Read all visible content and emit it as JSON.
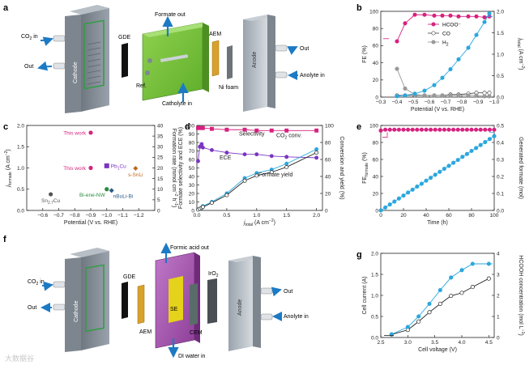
{
  "panels": {
    "a": {
      "label": "a",
      "labels": {
        "formate_out": "Formate out",
        "co2_in": "CO",
        "co2_sub": "2",
        "co2_tail": " in",
        "out": "Out",
        "gde": "GDE",
        "cathode": "Cathode",
        "ref": "Ref.",
        "aem": "AEM",
        "ni_foam": "Ni foam",
        "catholyte_in": "Catholyte in",
        "anode": "Anode",
        "out2": "Out",
        "anolyte_in": "Anolyte in"
      }
    },
    "f": {
      "label": "f",
      "labels": {
        "formic_acid_out": "Formic acid out",
        "co2_in": "CO",
        "co2_sub": "2",
        "co2_tail": " in",
        "out": "Out",
        "gde": "GDE",
        "cathode": "Cathode",
        "aem": "AEM",
        "se": "SE",
        "cem": "CEM",
        "iro2": "IrO",
        "iro2_sub": "2",
        "anode": "Anode",
        "out2": "Out",
        "anolyte_in": "Anolyte in",
        "di_water_in": "DI water in"
      }
    }
  },
  "watermark": "大数据谷",
  "colors": {
    "pink": "#d6217f",
    "purple": "#7b35c2",
    "cyan": "#2aa7de",
    "black": "#222222",
    "grey": "#888888",
    "green": "#2b8a3e",
    "orange": "#b86a1c"
  },
  "chart_data": [
    {
      "id": "b",
      "label": "b",
      "type": "line",
      "xlabel": "Potential (V vs. RHE)",
      "ylabel_left": "FE (%)",
      "ylabel_right_main": "j",
      "ylabel_right_sub": "total",
      "ylabel_right_unit": " (A cm",
      "ylabel_right_sup": "−2",
      "ylabel_right_close": ")",
      "xlim": [
        -0.3,
        -1.0
      ],
      "xticks": [
        -0.3,
        -0.4,
        -0.5,
        -0.6,
        -0.7,
        -0.8,
        -0.9,
        -1.0
      ],
      "ylim_left": [
        0,
        100
      ],
      "yticks_left": [
        0,
        20,
        40,
        60,
        80,
        100
      ],
      "ylim_right": [
        0,
        2.0
      ],
      "yticks_right": [
        0.0,
        0.5,
        1.0,
        1.5,
        2.0
      ],
      "series": [
        {
          "name": "HCOO⁻",
          "axis": "left",
          "color": "#d6217f",
          "fill": "#d6217f",
          "x": [
            -0.4,
            -0.45,
            -0.51,
            -0.57,
            -0.63,
            -0.68,
            -0.73,
            -0.78,
            -0.84,
            -0.89,
            -0.94,
            -0.97
          ],
          "y": [
            65,
            86,
            96,
            96,
            95,
            95,
            95,
            94,
            94,
            94,
            93,
            94
          ]
        },
        {
          "name": "CO",
          "axis": "left",
          "color": "#555555",
          "fill": "#ffffff",
          "x": [
            -0.4,
            -0.45,
            -0.51,
            -0.57,
            -0.63,
            -0.68,
            -0.73,
            -0.78,
            -0.84,
            -0.89,
            -0.94,
            -0.97
          ],
          "y": [
            2,
            2,
            2,
            2,
            2,
            2,
            3,
            3,
            4,
            5,
            5,
            5
          ]
        },
        {
          "name": "H",
          "name_sub": "2",
          "axis": "left",
          "color": "#999999",
          "fill": "#999999",
          "x": [
            -0.4,
            -0.45,
            -0.51,
            -0.57,
            -0.63,
            -0.68,
            -0.73,
            -0.78,
            -0.84,
            -0.89,
            -0.94,
            -0.97
          ],
          "y": [
            33,
            10,
            3,
            2,
            2,
            2,
            2,
            2,
            2,
            2,
            1,
            1
          ]
        },
        {
          "name": "j_total",
          "axis": "right",
          "color": "#2aa7de",
          "fill": "#2aa7de",
          "x": [
            -0.4,
            -0.45,
            -0.51,
            -0.57,
            -0.63,
            -0.68,
            -0.73,
            -0.78,
            -0.84,
            -0.89,
            -0.94,
            -0.97
          ],
          "y": [
            0.02,
            0.04,
            0.08,
            0.15,
            0.28,
            0.45,
            0.65,
            0.88,
            1.15,
            1.45,
            1.75,
            1.95
          ]
        }
      ]
    },
    {
      "id": "c",
      "label": "c",
      "type": "scatter",
      "xlabel": "Potential (V vs. RHE)",
      "ylabel_left_main": "j",
      "ylabel_left_sub": "formate",
      "ylabel_left_unit": " (A cm",
      "ylabel_left_sup": "−2",
      "ylabel_left_close": ")",
      "ylabel_right": "Formation rate (mmol cm",
      "ylabel_right_sup": "−2",
      "ylabel_right_tail": " h",
      "ylabel_right_sup2": "−1",
      "ylabel_right_close": ")",
      "xlim": [
        -0.5,
        -1.3
      ],
      "xticks": [
        -0.6,
        -0.7,
        -0.8,
        -0.9,
        -1.0,
        -1.1,
        -1.2
      ],
      "ylim_left": [
        0,
        2.0
      ],
      "yticks_left": [
        0.0,
        0.5,
        1.0,
        1.5,
        2.0
      ],
      "ylim_right": [
        0,
        40
      ],
      "yticks_right": [
        0,
        5,
        10,
        15,
        20,
        25,
        30,
        35,
        40
      ],
      "points": [
        {
          "name": "This work",
          "x": -0.9,
          "y": 1.83,
          "color": "#d6217f",
          "label_pos": "left"
        },
        {
          "name": "This work",
          "x": -0.9,
          "y": 1.0,
          "color": "#d6217f",
          "label_pos": "left"
        },
        {
          "name": "Pb",
          "name_sub": "1",
          "name_tail": "Cu",
          "x": -1.0,
          "y": 1.05,
          "color": "#7b35c2",
          "shape": "square",
          "label_pos": "right"
        },
        {
          "name": "s-SnLi",
          "x": -1.18,
          "y": 0.99,
          "color": "#b86a1c",
          "shape": "diamond",
          "label_pos": "below"
        },
        {
          "name": "Bi-ene-NW",
          "x": -1.0,
          "y": 0.5,
          "color": "#2b8a3e",
          "label_pos": "belowleft"
        },
        {
          "name": "nBuLi-Bi",
          "x": -1.03,
          "y": 0.47,
          "color": "#2b5a8a",
          "shape": "diamond",
          "label_pos": "belowright"
        },
        {
          "name": "Sn",
          "name_sub": "2.7",
          "name_tail": "Cu",
          "x": -0.65,
          "y": 0.38,
          "color": "#555555",
          "label_pos": "below"
        }
      ]
    },
    {
      "id": "d",
      "label": "d",
      "type": "line",
      "xlabel_main": "j",
      "xlabel_sub": "total",
      "xlabel_unit": " (A cm",
      "xlabel_sup": "−2",
      "xlabel_close": ")",
      "ylabel_left": "Formate selectivity and ECE (%)",
      "ylabel_right": "Conversion and yield (%)",
      "xlim": [
        0,
        2.1
      ],
      "xticks": [
        0.0,
        0.5,
        1.0,
        1.5,
        2.0
      ],
      "ylim_left": [
        0,
        100
      ],
      "yticks_left": [
        0,
        10,
        20,
        30,
        40,
        50,
        60,
        70,
        80,
        90,
        100
      ],
      "ylim_right": [
        0,
        100
      ],
      "yticks_right": [
        0,
        20,
        40,
        60,
        80,
        100
      ],
      "annotations": [
        "Selectivity",
        "ECE",
        "CO",
        "2",
        " conv.",
        "Formate yield"
      ],
      "series": [
        {
          "name": "Selectivity",
          "axis": "left",
          "color": "#d6217f",
          "fill": "#d6217f",
          "x": [
            0.02,
            0.05,
            0.08,
            0.1,
            0.25,
            0.5,
            0.8,
            1.0,
            1.25,
            1.5,
            2.0
          ],
          "y": [
            97,
            97,
            97,
            97,
            96,
            95,
            95,
            94,
            94,
            94,
            94
          ]
        },
        {
          "name": "ECE",
          "axis": "left",
          "color": "#7b35c2",
          "fill": "#7b35c2",
          "x": [
            0.02,
            0.05,
            0.08,
            0.1,
            0.25,
            0.5,
            0.8,
            1.0,
            1.25,
            1.5,
            2.0
          ],
          "y": [
            58,
            75,
            78,
            74,
            71,
            68,
            66,
            66,
            64,
            63,
            62
          ]
        },
        {
          "name": "CO2 conv.",
          "axis": "right",
          "color": "#2aa7de",
          "fill": "#2aa7de",
          "x": [
            0.02,
            0.05,
            0.08,
            0.1,
            0.25,
            0.5,
            0.8,
            1.0,
            1.25,
            1.5,
            2.0
          ],
          "y": [
            1,
            2,
            3,
            5,
            10,
            20,
            38,
            44,
            48,
            55,
            72
          ]
        },
        {
          "name": "Formate yield",
          "axis": "right",
          "color": "#222222",
          "fill": "#ffffff",
          "x": [
            0.02,
            0.05,
            0.08,
            0.1,
            0.25,
            0.5,
            0.8,
            1.0,
            1.25,
            1.5,
            2.0
          ],
          "y": [
            1,
            2,
            3,
            4,
            9,
            18,
            35,
            41,
            45,
            51,
            68
          ]
        }
      ]
    },
    {
      "id": "e",
      "label": "e",
      "type": "line",
      "xlabel": "Time (h)",
      "ylabel_left_main": "FE",
      "ylabel_left_sub": "formate",
      "ylabel_left_tail": " (%)",
      "ylabel_right": "Generated formate (mol)",
      "xlim": [
        0,
        100
      ],
      "xticks": [
        0,
        20,
        40,
        60,
        80,
        100
      ],
      "ylim_left": [
        0,
        100
      ],
      "yticks_left": [
        0,
        20,
        40,
        60,
        80,
        100
      ],
      "ylim_right": [
        0,
        0.5
      ],
      "yticks_right": [
        0.0,
        0.1,
        0.2,
        0.3,
        0.4,
        0.5
      ],
      "series": [
        {
          "name": "FE_formate",
          "axis": "left",
          "color": "#d6217f",
          "fill": "#d6217f",
          "x": [
            0,
            4,
            8,
            12,
            16,
            20,
            24,
            28,
            32,
            36,
            40,
            44,
            48,
            52,
            56,
            60,
            64,
            68,
            72,
            76,
            80,
            84,
            88,
            92,
            96,
            100
          ],
          "y": [
            94,
            95,
            95,
            95,
            95,
            95,
            95,
            95,
            95,
            95,
            95,
            95,
            95,
            95,
            95,
            95,
            95,
            95,
            95,
            95,
            95,
            95,
            95,
            95,
            95,
            95
          ]
        },
        {
          "name": "Generated formate",
          "axis": "right",
          "color": "#2aa7de",
          "fill": "#2aa7de",
          "x": [
            0,
            4,
            8,
            12,
            16,
            20,
            24,
            28,
            32,
            36,
            40,
            44,
            48,
            52,
            56,
            60,
            64,
            68,
            72,
            76,
            80,
            84,
            88,
            92,
            96,
            100
          ],
          "y": [
            0.0,
            0.017,
            0.035,
            0.052,
            0.07,
            0.087,
            0.105,
            0.122,
            0.14,
            0.157,
            0.175,
            0.192,
            0.21,
            0.227,
            0.245,
            0.262,
            0.28,
            0.297,
            0.315,
            0.332,
            0.35,
            0.367,
            0.385,
            0.402,
            0.42,
            0.437
          ]
        }
      ]
    },
    {
      "id": "g",
      "label": "g",
      "type": "line",
      "xlabel": "Cell voltage (V)",
      "ylabel_left": "Cell current (A)",
      "ylabel_right": "HCOOH concentration (mol L",
      "ylabel_right_sup": "−1",
      "ylabel_right_close": ")",
      "xlim": [
        2.5,
        4.6
      ],
      "xticks": [
        2.5,
        3.0,
        3.5,
        4.0,
        4.5
      ],
      "ylim_left": [
        0,
        2.0
      ],
      "yticks_left": [
        0.0,
        0.5,
        1.0,
        1.5,
        2.0
      ],
      "ylim_right": [
        0,
        4
      ],
      "yticks_right": [
        0,
        1,
        2,
        3,
        4
      ],
      "series": [
        {
          "name": "Cell current",
          "axis": "left",
          "color": "#222222",
          "fill": "#ffffff",
          "x": [
            2.7,
            3.0,
            3.2,
            3.4,
            3.6,
            3.8,
            4.0,
            4.2,
            4.5
          ],
          "y": [
            0.07,
            0.18,
            0.38,
            0.6,
            0.8,
            0.99,
            1.06,
            1.2,
            1.4
          ]
        },
        {
          "name": "HCOOH concentration",
          "axis": "right",
          "color": "#2aa7de",
          "fill": "#2aa7de",
          "x": [
            2.7,
            3.0,
            3.2,
            3.4,
            3.6,
            3.8,
            4.0,
            4.2,
            4.5
          ],
          "y": [
            0.15,
            0.5,
            1.0,
            1.6,
            2.25,
            2.85,
            3.2,
            3.5,
            3.5
          ]
        }
      ]
    }
  ]
}
